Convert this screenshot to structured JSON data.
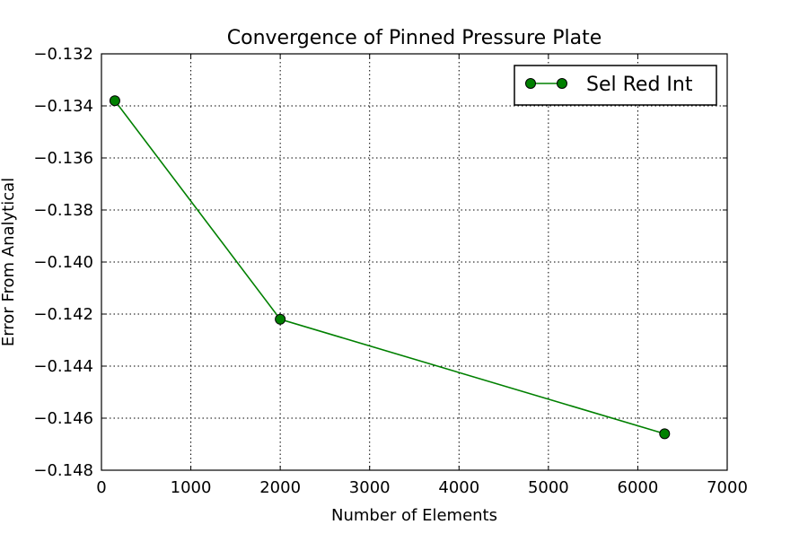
{
  "chart_data": {
    "type": "line",
    "title": "Convergence of Pinned Pressure Plate",
    "xlabel": "Number of Elements",
    "ylabel": "Error From Analytical",
    "xlim": [
      0,
      7000
    ],
    "ylim": [
      -0.148,
      -0.132
    ],
    "xticks": [
      0,
      1000,
      2000,
      3000,
      4000,
      5000,
      6000,
      7000
    ],
    "yticks": [
      -0.132,
      -0.134,
      -0.136,
      -0.138,
      -0.14,
      -0.142,
      -0.144,
      -0.146,
      -0.148
    ],
    "xtick_labels": [
      "0",
      "1000",
      "2000",
      "3000",
      "4000",
      "5000",
      "6000",
      "7000"
    ],
    "ytick_labels": [
      "−0.132",
      "−0.134",
      "−0.136",
      "−0.138",
      "−0.140",
      "−0.142",
      "−0.144",
      "−0.146",
      "−0.148"
    ],
    "grid": true,
    "legend_position": "upper-right",
    "series": [
      {
        "name": "Sel Red Int",
        "color": "#008000",
        "marker": "circle",
        "x": [
          150,
          2000,
          6300
        ],
        "y": [
          -0.1338,
          -0.1422,
          -0.1466
        ]
      }
    ]
  }
}
